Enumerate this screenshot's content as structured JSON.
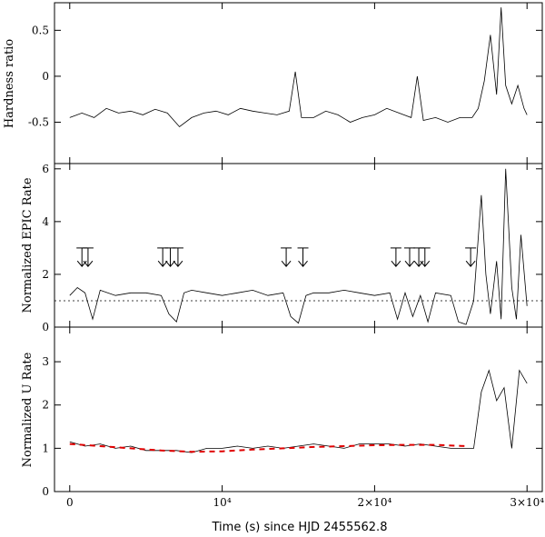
{
  "figure": {
    "x_label": "Time (s) since HJD 2455562.8"
  },
  "chart_data": [
    {
      "type": "line",
      "panel": "top",
      "ylabel": "Hardness ratio",
      "xlim": [
        -1000,
        31000
      ],
      "ylim": [
        -0.95,
        0.8
      ],
      "yticks": [
        {
          "value": 0.5,
          "label": "0.5"
        },
        {
          "value": 0,
          "label": "0"
        },
        {
          "value": -0.5,
          "label": "-0.5"
        }
      ],
      "series": [
        {
          "name": "Hardness ratio",
          "x": [
            0,
            800,
            1600,
            2400,
            3200,
            4000,
            4800,
            5600,
            6400,
            7200,
            8000,
            8800,
            9600,
            10400,
            11200,
            12000,
            12800,
            13600,
            14400,
            14800,
            15200,
            16000,
            16800,
            17600,
            18400,
            19200,
            20000,
            20800,
            21600,
            22400,
            22800,
            23200,
            24000,
            24800,
            25600,
            26400,
            26800,
            27200,
            27600,
            28000,
            28300,
            28600,
            29000,
            29400,
            29800,
            30000
          ],
          "y": [
            -0.45,
            -0.4,
            -0.45,
            -0.35,
            -0.4,
            -0.38,
            -0.42,
            -0.36,
            -0.4,
            -0.55,
            -0.45,
            -0.4,
            -0.38,
            -0.42,
            -0.35,
            -0.38,
            -0.4,
            -0.42,
            -0.38,
            0.05,
            -0.45,
            -0.45,
            -0.38,
            -0.42,
            -0.5,
            -0.45,
            -0.42,
            -0.35,
            -0.4,
            -0.45,
            0.0,
            -0.48,
            -0.45,
            -0.5,
            -0.45,
            -0.45,
            -0.35,
            -0.05,
            0.45,
            -0.2,
            0.75,
            -0.1,
            -0.3,
            -0.1,
            -0.35,
            -0.42
          ]
        }
      ]
    },
    {
      "type": "line",
      "panel": "middle",
      "ylabel": "Normalized EPIC Rate",
      "xlim": [
        -1000,
        31000
      ],
      "ylim": [
        0,
        6.2
      ],
      "reference_level": 1,
      "yticks": [
        {
          "value": 0,
          "label": "0"
        },
        {
          "value": 2,
          "label": "2"
        },
        {
          "value": 4,
          "label": "4"
        },
        {
          "value": 6,
          "label": "6"
        }
      ],
      "series": [
        {
          "name": "EPIC rate",
          "x": [
            0,
            500,
            1000,
            1500,
            2000,
            3000,
            4000,
            5000,
            6000,
            6500,
            7000,
            7500,
            8000,
            9000,
            10000,
            11000,
            12000,
            13000,
            14000,
            14500,
            15000,
            15500,
            16000,
            17000,
            18000,
            19000,
            20000,
            21000,
            21500,
            22000,
            22500,
            23000,
            23500,
            24000,
            25000,
            25500,
            26000,
            26500,
            27000,
            27300,
            27600,
            28000,
            28300,
            28600,
            29000,
            29300,
            29600,
            30000
          ],
          "y": [
            1.2,
            1.5,
            1.3,
            0.3,
            1.4,
            1.2,
            1.3,
            1.3,
            1.2,
            0.5,
            0.2,
            1.3,
            1.4,
            1.3,
            1.2,
            1.3,
            1.4,
            1.2,
            1.3,
            0.4,
            0.15,
            1.2,
            1.3,
            1.3,
            1.4,
            1.3,
            1.2,
            1.3,
            0.3,
            1.3,
            0.4,
            1.2,
            0.2,
            1.3,
            1.2,
            0.2,
            0.1,
            1.0,
            5.0,
            2.0,
            0.5,
            2.5,
            0.3,
            6.0,
            1.5,
            0.3,
            3.5,
            0.8
          ]
        }
      ],
      "arrow_times": [
        800,
        1200,
        6100,
        6600,
        7100,
        14200,
        15300,
        21400,
        22300,
        22900,
        23300,
        26300
      ]
    },
    {
      "type": "line",
      "panel": "bottom",
      "ylabel": "Normalized U Rate",
      "xlim": [
        -1000,
        31000
      ],
      "ylim": [
        0,
        3.8
      ],
      "yticks": [
        {
          "value": 0,
          "label": "0"
        },
        {
          "value": 1,
          "label": "1"
        },
        {
          "value": 2,
          "label": "2"
        },
        {
          "value": 3,
          "label": "3"
        }
      ],
      "xticks": [
        {
          "value": 0,
          "label": "0"
        },
        {
          "value": 10000,
          "label": "10⁴"
        },
        {
          "value": 20000,
          "label": "2×10⁴"
        },
        {
          "value": 30000,
          "label": "3×10⁴"
        }
      ],
      "series": [
        {
          "name": "U rate",
          "x": [
            0,
            1000,
            2000,
            3000,
            4000,
            5000,
            7000,
            8000,
            9000,
            10000,
            11000,
            12000,
            13000,
            14000,
            15000,
            16000,
            17000,
            18000,
            19000,
            20000,
            21000,
            22000,
            23000,
            24000,
            25000,
            26000,
            26500,
            27000,
            27500,
            28000,
            28500,
            29000,
            29500,
            30000
          ],
          "y": [
            1.15,
            1.05,
            1.1,
            1.0,
            1.05,
            0.95,
            0.95,
            0.9,
            1.0,
            1.0,
            1.05,
            1.0,
            1.05,
            1.0,
            1.05,
            1.1,
            1.05,
            1.0,
            1.1,
            1.1,
            1.1,
            1.05,
            1.1,
            1.05,
            1.0,
            1.0,
            1.0,
            2.3,
            2.8,
            2.1,
            2.4,
            1.0,
            2.8,
            2.5
          ]
        },
        {
          "name": "Trend",
          "style": "red dashed",
          "x": [
            0,
            2000,
            4000,
            6000,
            8000,
            10000,
            12000,
            14000,
            16000,
            18000,
            20000,
            22000,
            24000,
            26000
          ],
          "y": [
            1.1,
            1.05,
            1.0,
            0.95,
            0.92,
            0.93,
            0.97,
            1.0,
            1.03,
            1.05,
            1.07,
            1.08,
            1.08,
            1.05
          ]
        }
      ]
    }
  ]
}
